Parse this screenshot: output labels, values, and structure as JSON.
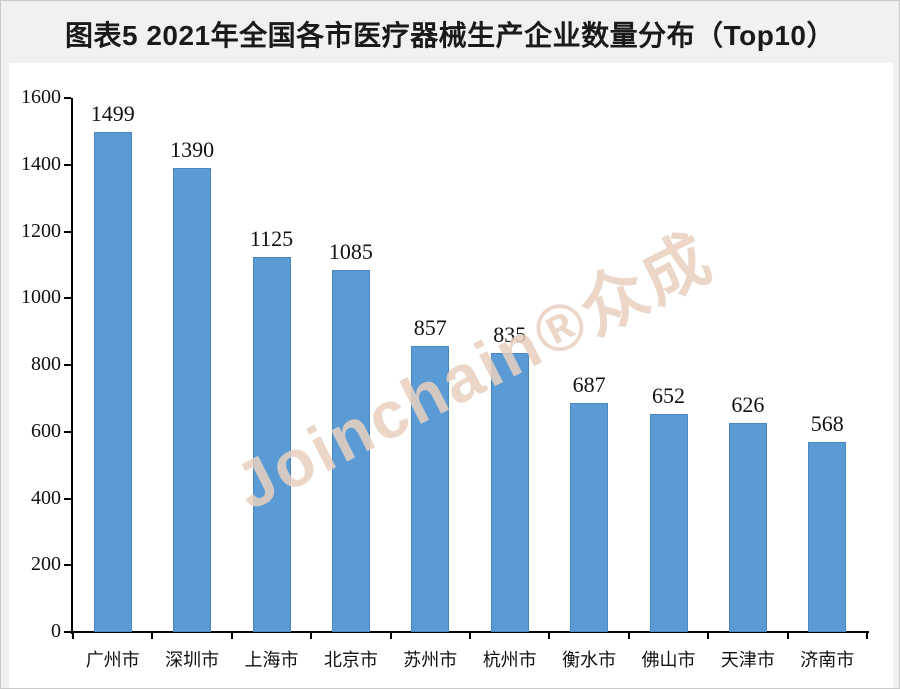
{
  "figure": {
    "title": "图表5 2021年全国各市医疗器械生产企业数量分布（Top10）",
    "watermark": "Joinchain®众成"
  },
  "colors": {
    "title": "#1a1a1a",
    "bar": "#5B9BD5",
    "bar_border": "#4a86c2",
    "axis": "#000000",
    "background": "#f1f1f1",
    "panel": "#ffffff",
    "watermark": "#e8d0bf"
  },
  "chart_data": {
    "type": "bar",
    "title": "图表5 2021年全国各市医疗器械生产企业数量分布（Top10）",
    "categories": [
      "广州市",
      "深圳市",
      "上海市",
      "北京市",
      "苏州市",
      "杭州市",
      "衡水市",
      "佛山市",
      "天津市",
      "济南市"
    ],
    "values": [
      1499,
      1390,
      1125,
      1085,
      857,
      835,
      687,
      652,
      626,
      568
    ],
    "xlabel": "",
    "ylabel": "",
    "ylim": [
      0,
      1600
    ],
    "ytick_step": 200,
    "yticks": [
      0,
      200,
      400,
      600,
      800,
      1000,
      1200,
      1400,
      1600
    ],
    "grid": false,
    "legend": false,
    "data_labels": true,
    "bar_color": "#5B9BD5"
  }
}
